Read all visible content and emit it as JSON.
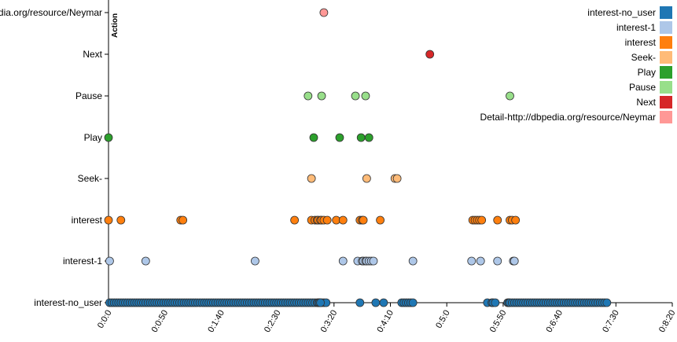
{
  "chart_data": {
    "type": "scatter",
    "ylabel": "Action",
    "categories": [
      "interest-no_user",
      "interest-1",
      "interest",
      "Seek-",
      "Play",
      "Pause",
      "Next",
      "Detail-http://dbpedia.org/resource/Neymar"
    ],
    "xlim": [
      0,
      500
    ],
    "xticks": [
      "0:0:0",
      "0:0:50",
      "0:1:40",
      "0:2:30",
      "0:3:20",
      "0:4:10",
      "0:5:0",
      "0:5:50",
      "0:6:40",
      "0:7:30",
      "0:8:20"
    ],
    "legend_position": "top-right",
    "series": [
      {
        "name": "interest-no_user",
        "color": "#1f77b4",
        "row": 0,
        "x": [
          1,
          3,
          5,
          7,
          9,
          11,
          13,
          15,
          17,
          19,
          21,
          23,
          25,
          27,
          29,
          31,
          33,
          35,
          37,
          39,
          41,
          43,
          45,
          47,
          49,
          51,
          53,
          55,
          57,
          59,
          61,
          63,
          65,
          67,
          69,
          71,
          73,
          75,
          77,
          79,
          81,
          83,
          85,
          87,
          89,
          91,
          93,
          95,
          97,
          99,
          101,
          103,
          105,
          107,
          109,
          111,
          113,
          115,
          117,
          119,
          121,
          123,
          125,
          127,
          129,
          131,
          133,
          135,
          137,
          139,
          141,
          143,
          145,
          147,
          149,
          151,
          153,
          155,
          157,
          159,
          161,
          163,
          165,
          167,
          169,
          171,
          173,
          175,
          177,
          179,
          181,
          183,
          185,
          187,
          189,
          191,
          193,
          186,
          187,
          188,
          223,
          237,
          244,
          260,
          262,
          264,
          266,
          268,
          270,
          336,
          340,
          341,
          343,
          354,
          355,
          356,
          358,
          360,
          362,
          364,
          366,
          368,
          370,
          372,
          374,
          376,
          378,
          380,
          382,
          384,
          386,
          388,
          390,
          392,
          394,
          396,
          398,
          400,
          402,
          404,
          406,
          408,
          410,
          412,
          414,
          416,
          418,
          420,
          422,
          424,
          426,
          428,
          430,
          432,
          434,
          436,
          438,
          440,
          442
        ]
      },
      {
        "name": "interest-1",
        "color": "#aec7e8",
        "row": 1,
        "x": [
          1,
          33,
          130,
          208,
          221,
          225,
          226,
          228,
          229,
          231,
          233,
          235,
          270,
          322,
          330,
          345,
          359,
          360
        ]
      },
      {
        "name": "interest",
        "color": "#ff7f0e",
        "row": 2,
        "x": [
          0,
          11,
          64,
          66,
          165,
          180,
          183,
          185,
          186,
          188,
          189,
          191,
          194,
          202,
          208,
          223,
          225,
          226,
          241,
          323,
          325,
          327,
          329,
          331,
          345,
          356,
          358,
          361
        ]
      },
      {
        "name": "Seek-",
        "color": "#ffbb78",
        "row": 3,
        "x": [
          180,
          229,
          254,
          256
        ]
      },
      {
        "name": "Play",
        "color": "#2ca02c",
        "row": 4,
        "x": [
          0,
          182,
          205,
          224,
          231
        ]
      },
      {
        "name": "Pause",
        "color": "#98df8a",
        "row": 5,
        "x": [
          177,
          189,
          219,
          228,
          356
        ]
      },
      {
        "name": "Next",
        "color": "#d62728",
        "row": 6,
        "x": [
          285
        ]
      },
      {
        "name": "Detail-http://dbpedia.org/resource/Neymar",
        "color": "#ff9896",
        "row": 7,
        "x": [
          191
        ]
      }
    ]
  }
}
